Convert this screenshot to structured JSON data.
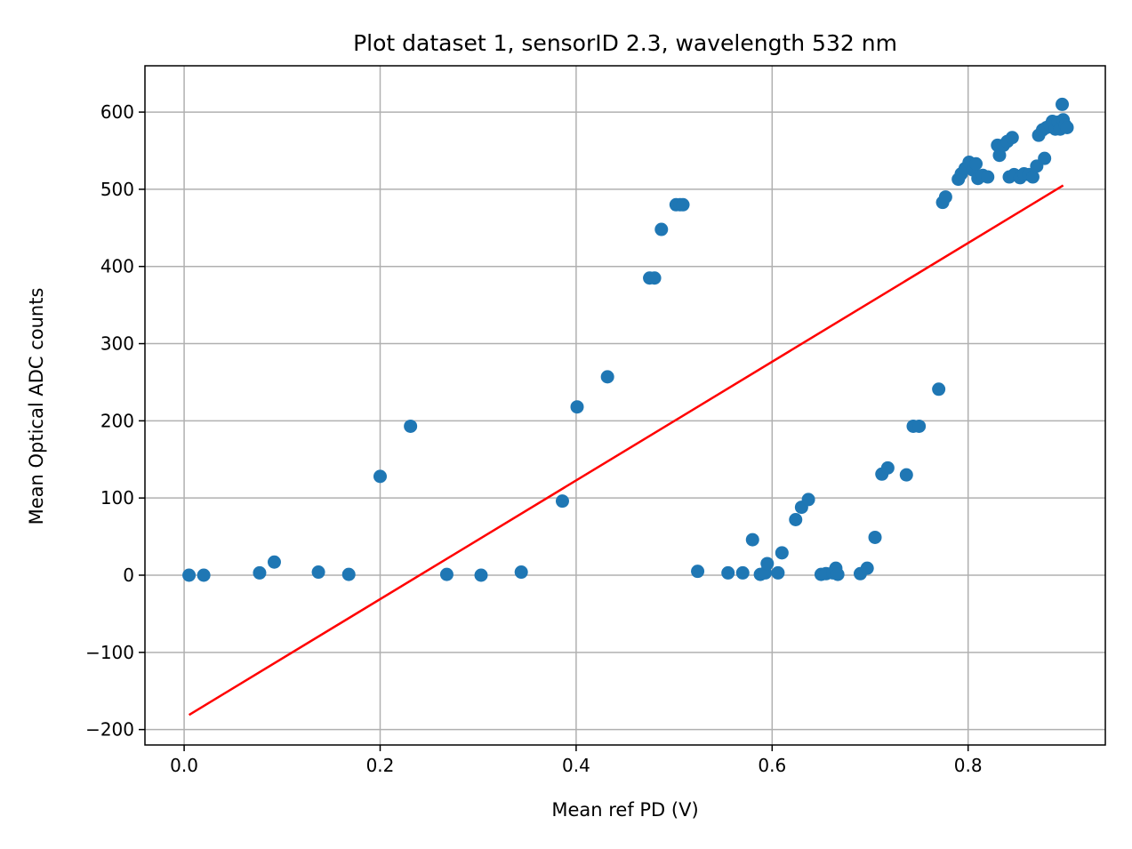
{
  "chart_data": {
    "type": "scatter",
    "title": "Plot dataset 1, sensorID 2.3, wavelength 532 nm",
    "xlabel": "Mean ref PD (V)",
    "ylabel": "Mean Optical ADC counts",
    "xlim": [
      -0.04,
      0.94
    ],
    "ylim": [
      -220,
      660
    ],
    "xticks": [
      0.0,
      0.2,
      0.4,
      0.6,
      0.8
    ],
    "xtick_labels": [
      "0.0",
      "0.2",
      "0.4",
      "0.6",
      "0.8"
    ],
    "yticks": [
      -200,
      -100,
      0,
      100,
      200,
      300,
      400,
      500,
      600
    ],
    "ytick_labels": [
      "−200",
      "−100",
      "0",
      "100",
      "200",
      "300",
      "400",
      "500",
      "600"
    ],
    "grid": true,
    "colors": {
      "points": "#1f77b4",
      "fit": "#ff0000",
      "grid": "#b0b0b0"
    },
    "series": [
      {
        "kind": "scatter",
        "points": [
          [
            0.005,
            0
          ],
          [
            0.02,
            0
          ],
          [
            0.077,
            3
          ],
          [
            0.092,
            17
          ],
          [
            0.137,
            4
          ],
          [
            0.168,
            1
          ],
          [
            0.2,
            128
          ],
          [
            0.231,
            193
          ],
          [
            0.268,
            1
          ],
          [
            0.303,
            0
          ],
          [
            0.344,
            4
          ],
          [
            0.386,
            96
          ],
          [
            0.401,
            218
          ],
          [
            0.432,
            257
          ],
          [
            0.475,
            385
          ],
          [
            0.48,
            385
          ],
          [
            0.487,
            448
          ],
          [
            0.502,
            480
          ],
          [
            0.506,
            480
          ],
          [
            0.509,
            480
          ],
          [
            0.524,
            5
          ],
          [
            0.555,
            3
          ],
          [
            0.57,
            3
          ],
          [
            0.58,
            46
          ],
          [
            0.588,
            1
          ],
          [
            0.593,
            3
          ],
          [
            0.595,
            15
          ],
          [
            0.606,
            3
          ],
          [
            0.61,
            29
          ],
          [
            0.624,
            72
          ],
          [
            0.63,
            88
          ],
          [
            0.637,
            98
          ],
          [
            0.65,
            1
          ],
          [
            0.655,
            2
          ],
          [
            0.662,
            3
          ],
          [
            0.665,
            9
          ],
          [
            0.667,
            1
          ],
          [
            0.69,
            2
          ],
          [
            0.697,
            9
          ],
          [
            0.705,
            49
          ],
          [
            0.712,
            131
          ],
          [
            0.718,
            139
          ],
          [
            0.737,
            130
          ],
          [
            0.744,
            193
          ],
          [
            0.75,
            193
          ],
          [
            0.77,
            241
          ],
          [
            0.774,
            483
          ],
          [
            0.777,
            490
          ],
          [
            0.79,
            513
          ],
          [
            0.793,
            520
          ],
          [
            0.797,
            527
          ],
          [
            0.801,
            535
          ],
          [
            0.805,
            525
          ],
          [
            0.808,
            533
          ],
          [
            0.81,
            514
          ],
          [
            0.815,
            518
          ],
          [
            0.82,
            516
          ],
          [
            0.83,
            557
          ],
          [
            0.832,
            544
          ],
          [
            0.836,
            557
          ],
          [
            0.84,
            562
          ],
          [
            0.842,
            516
          ],
          [
            0.845,
            567
          ],
          [
            0.847,
            519
          ],
          [
            0.853,
            515
          ],
          [
            0.857,
            520
          ],
          [
            0.862,
            519
          ],
          [
            0.866,
            516
          ],
          [
            0.87,
            530
          ],
          [
            0.872,
            570
          ],
          [
            0.876,
            577
          ],
          [
            0.878,
            540
          ],
          [
            0.88,
            580
          ],
          [
            0.884,
            583
          ],
          [
            0.886,
            588
          ],
          [
            0.889,
            578
          ],
          [
            0.892,
            587
          ],
          [
            0.894,
            578
          ],
          [
            0.896,
            610
          ],
          [
            0.897,
            590
          ],
          [
            0.899,
            583
          ],
          [
            0.901,
            580
          ]
        ]
      },
      {
        "kind": "line",
        "points": [
          [
            0.005,
            -181
          ],
          [
            0.897,
            505
          ]
        ]
      }
    ]
  }
}
